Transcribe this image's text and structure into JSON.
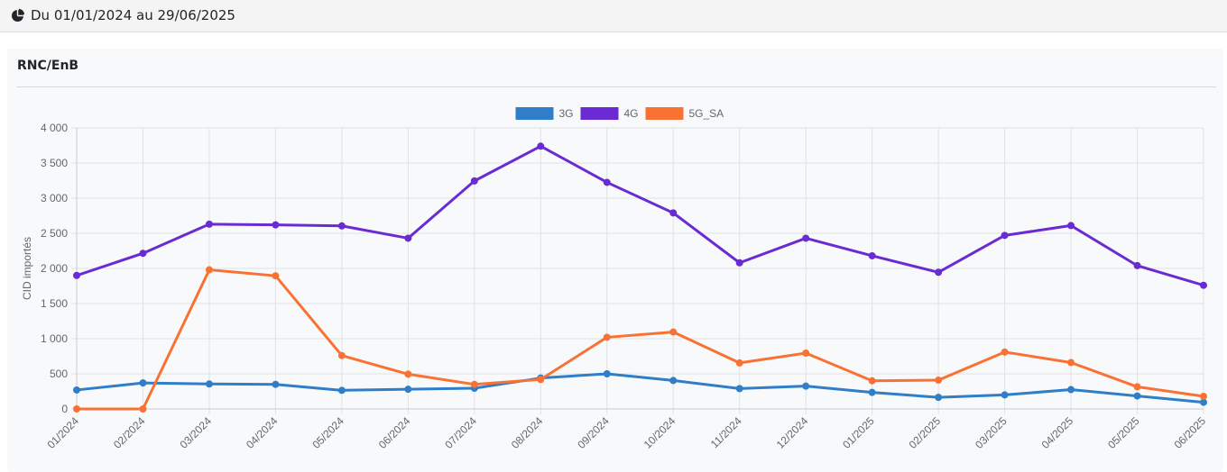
{
  "header": {
    "icon": "pie-chart-icon",
    "range_text": "Du 01/01/2024 au 29/06/2025"
  },
  "card": {
    "title": "RNC/EnB"
  },
  "chart_data": {
    "type": "line",
    "title": "",
    "xlabel": "",
    "ylabel": "CID importés",
    "ylim": [
      0,
      4000
    ],
    "yticks": [
      0,
      500,
      1000,
      1500,
      2000,
      2500,
      3000,
      3500,
      4000
    ],
    "ytick_labels": [
      "0",
      "500",
      "1 000",
      "1 500",
      "2 000",
      "2 500",
      "3 000",
      "3 500",
      "4 000"
    ],
    "grid": true,
    "legend_position": "top-center",
    "categories": [
      "01/2024",
      "02/2024",
      "03/2024",
      "04/2024",
      "05/2024",
      "06/2024",
      "07/2024",
      "08/2024",
      "09/2024",
      "10/2024",
      "11/2024",
      "12/2024",
      "01/2025",
      "02/2025",
      "03/2025",
      "04/2025",
      "05/2025",
      "06/2025"
    ],
    "series": [
      {
        "name": "3G",
        "color": "#2f7ec7",
        "values": [
          270,
          370,
          355,
          350,
          265,
          280,
          295,
          440,
          500,
          405,
          290,
          325,
          235,
          165,
          200,
          275,
          185,
          95
        ]
      },
      {
        "name": "4G",
        "color": "#6a2bd3",
        "values": [
          1900,
          2215,
          2630,
          2620,
          2605,
          2430,
          3245,
          3740,
          3225,
          2790,
          2080,
          2430,
          2180,
          1945,
          2470,
          2610,
          2040,
          1760
        ]
      },
      {
        "name": "5G_SA",
        "color": "#f97234",
        "values": [
          0,
          0,
          1980,
          1895,
          760,
          495,
          350,
          420,
          1020,
          1095,
          655,
          795,
          400,
          410,
          810,
          660,
          315,
          180
        ]
      }
    ]
  }
}
